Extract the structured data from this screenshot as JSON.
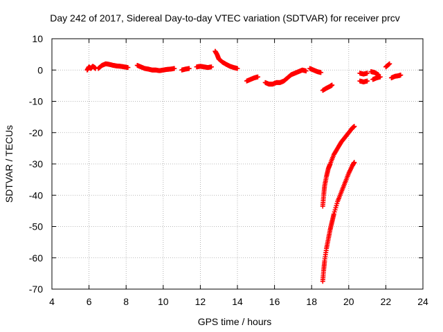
{
  "chart_data": {
    "type": "scatter",
    "title": "Day 242 of 2017, Sidereal Day-to-day VTEC variation (SDTVAR) for receiver prcv",
    "xlabel": "GPS time / hours",
    "ylabel": "SDTVAR / TECUs",
    "xlim": [
      4,
      24
    ],
    "ylim": [
      -70,
      10
    ],
    "x_ticks": [
      4,
      6,
      8,
      10,
      12,
      14,
      16,
      18,
      20,
      22,
      24
    ],
    "y_ticks": [
      10,
      0,
      -10,
      -20,
      -30,
      -40,
      -50,
      -60,
      -70
    ],
    "grid": true,
    "marker": "+",
    "color": "#ff0000",
    "series": [
      {
        "name": "seg1",
        "x": [
          5.9,
          6.0,
          6.1,
          6.2,
          6.3,
          6.35
        ],
        "y": [
          0.0,
          1.0,
          0.5,
          1.2,
          0.8,
          0.5
        ]
      },
      {
        "name": "seg2",
        "x": [
          6.5,
          6.7,
          6.9,
          7.1,
          7.3,
          7.5,
          7.7,
          7.9,
          8.1
        ],
        "y": [
          0.5,
          1.5,
          2.0,
          1.8,
          1.5,
          1.3,
          1.2,
          1.0,
          0.8
        ]
      },
      {
        "name": "seg3",
        "x": [
          8.6,
          8.8,
          9.0,
          9.2,
          9.4,
          9.6,
          9.8,
          10.0,
          10.2,
          10.4,
          10.6
        ],
        "y": [
          1.5,
          1.0,
          0.5,
          0.3,
          0.0,
          0.0,
          -0.2,
          0.0,
          0.2,
          0.3,
          0.5
        ]
      },
      {
        "name": "seg4",
        "x": [
          11.0,
          11.2,
          11.4
        ],
        "y": [
          0.0,
          0.3,
          0.5
        ]
      },
      {
        "name": "seg5",
        "x": [
          11.8,
          12.0,
          12.2,
          12.4,
          12.6
        ],
        "y": [
          1.0,
          1.2,
          1.0,
          0.8,
          1.0
        ]
      },
      {
        "name": "seg6",
        "x": [
          12.8,
          12.9,
          13.0,
          13.2,
          13.4,
          13.6,
          13.8,
          14.0
        ],
        "y": [
          6.0,
          5.0,
          3.5,
          2.5,
          1.8,
          1.2,
          0.8,
          0.5
        ]
      },
      {
        "name": "seg7",
        "x": [
          14.5,
          14.7,
          14.9,
          15.1
        ],
        "y": [
          -3.5,
          -3.0,
          -2.5,
          -2.2
        ]
      },
      {
        "name": "seg8",
        "x": [
          15.5,
          15.7,
          15.9,
          16.1,
          16.3,
          16.5,
          16.7,
          16.9,
          17.1,
          17.3,
          17.5,
          17.7
        ],
        "y": [
          -4.0,
          -4.5,
          -4.5,
          -4.0,
          -4.0,
          -3.5,
          -2.5,
          -1.5,
          -1.0,
          -0.5,
          0.0,
          -0.3
        ]
      },
      {
        "name": "seg9",
        "x": [
          17.9,
          18.1,
          18.3,
          18.5
        ],
        "y": [
          0.5,
          0.0,
          -0.5,
          -0.8
        ]
      },
      {
        "name": "seg10",
        "x": [
          18.6,
          18.8,
          19.0,
          19.1
        ],
        "y": [
          -6.5,
          -5.8,
          -5.2,
          -4.8
        ]
      },
      {
        "name": "seg11",
        "x": [
          18.6,
          18.65,
          18.7,
          18.8,
          18.9,
          19.0,
          19.2,
          19.4,
          19.6,
          19.8,
          20.0,
          20.2,
          20.3
        ],
        "y": [
          -43.5,
          -40.0,
          -37.0,
          -34.0,
          -31.5,
          -30.0,
          -27.0,
          -25.0,
          -23.0,
          -21.5,
          -20.0,
          -18.5,
          -18.0
        ]
      },
      {
        "name": "seg12",
        "x": [
          18.6,
          18.65,
          18.7,
          18.8,
          18.9,
          19.0,
          19.1,
          19.2,
          19.4,
          19.6,
          19.8,
          20.0,
          20.2,
          20.3
        ],
        "y": [
          -67.5,
          -64.0,
          -61.0,
          -57.0,
          -54.0,
          -51.0,
          -48.5,
          -46.0,
          -42.0,
          -39.0,
          -36.0,
          -33.0,
          -30.5,
          -29.5
        ]
      },
      {
        "name": "seg13",
        "x": [
          20.6,
          20.8,
          21.0
        ],
        "y": [
          -1.0,
          -1.3,
          -1.0
        ]
      },
      {
        "name": "seg14",
        "x": [
          20.6,
          20.8,
          21.0
        ],
        "y": [
          -3.5,
          -3.8,
          -3.5
        ]
      },
      {
        "name": "seg15",
        "x": [
          21.2,
          21.4,
          21.6
        ],
        "y": [
          -0.5,
          -0.8,
          -1.5
        ]
      },
      {
        "name": "seg16",
        "x": [
          21.3,
          21.5,
          21.7
        ],
        "y": [
          -3.0,
          -2.5,
          -2.2
        ]
      },
      {
        "name": "seg17",
        "x": [
          22.0,
          22.2
        ],
        "y": [
          1.0,
          2.0
        ]
      },
      {
        "name": "seg18",
        "x": [
          22.3,
          22.5,
          22.7,
          22.8
        ],
        "y": [
          -2.5,
          -2.0,
          -1.8,
          -1.6
        ]
      }
    ]
  }
}
